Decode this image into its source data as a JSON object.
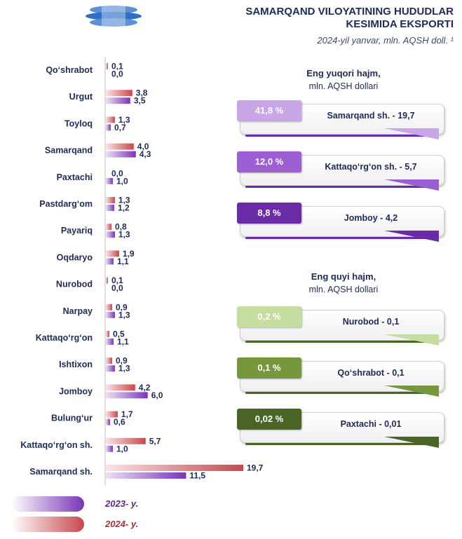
{
  "header": {
    "title_line1": "SAMARQAND VILOYATINING HUDUDLAR",
    "title_line2": "KESIMIDA EKSPORTI",
    "subtitle": "2024-yil yanvar, mln. AQSH doll. ¹"
  },
  "colors": {
    "series_2024": "#c8474f",
    "series_2023": "#7a35b5",
    "title": "#1f2a56",
    "top_card_1": "#c9a6e6",
    "top_card_2": "#9b5fd3",
    "top_card_3": "#6b2aa6",
    "bottom_card_1": "#c6dda0",
    "bottom_card_2": "#77973c",
    "bottom_card_3": "#4a6426"
  },
  "chart_data": {
    "type": "bar",
    "orientation": "horizontal",
    "categories": [
      "Qo‘shrabot",
      "Urgut",
      "Toyloq",
      "Samarqand",
      "Paxtachi",
      "Pastdarg‘om",
      "Payariq",
      "Oqdaryo",
      "Nurobod",
      "Narpay",
      "Kattaqo‘rg‘on",
      "Ishtixon",
      "Jomboy",
      "Bulung‘ur",
      "Kattaqo‘rg‘on sh.",
      "Samarqand sh."
    ],
    "series": [
      {
        "name": "2024- y.",
        "values": [
          0.1,
          3.8,
          1.3,
          4.0,
          0.0,
          1.3,
          0.8,
          1.9,
          0.1,
          0.9,
          0.5,
          0.9,
          4.2,
          1.7,
          5.7,
          19.7
        ],
        "labels": [
          "0,1",
          "3,8",
          "1,3",
          "4,0",
          "0,0",
          "1,3",
          "0,8",
          "1,9",
          "0,1",
          "0,9",
          "0,5",
          "0,9",
          "4,2",
          "1,7",
          "5,7",
          "19,7"
        ]
      },
      {
        "name": "2023- y.",
        "values": [
          0.0,
          3.5,
          0.7,
          4.3,
          1.0,
          1.2,
          1.3,
          1.1,
          0.0,
          1.3,
          1.1,
          1.3,
          6.0,
          0.6,
          1.0,
          11.5
        ],
        "labels": [
          "0,0",
          "3,5",
          "0,7",
          "4,3",
          "1,0",
          "1,2",
          "1,3",
          "1,1",
          "0,0",
          "1,3",
          "1,1",
          "1,3",
          "6,0",
          "0,6",
          "1,0",
          "11,5"
        ]
      }
    ],
    "xlim": [
      0,
      19.7
    ],
    "grid": false,
    "legend_position": "bottom-left"
  },
  "top": {
    "heading1": "Eng yuqori hajm,",
    "heading2": "mln. AQSH dollari",
    "cards": [
      {
        "pct": "41,8 %",
        "name": "Samarqand sh. - 19,7"
      },
      {
        "pct": "12,0 %",
        "name": "Kattaqo‘rg‘on sh. - 5,7"
      },
      {
        "pct": "8,8 %",
        "name": "Jomboy - 4,2"
      }
    ]
  },
  "bottom": {
    "heading1": "Eng quyi hajm,",
    "heading2": "mln. AQSH dollari",
    "cards": [
      {
        "pct": "0,2 %",
        "name": "Nurobod - 0,1"
      },
      {
        "pct": "0,1 %",
        "name": "Qo‘shrabot - 0,1"
      },
      {
        "pct": "0,02 %",
        "name": "Paxtachi - 0,01"
      }
    ]
  },
  "legend": {
    "label_2023": "2023- y.",
    "label_2024": "2024- y."
  }
}
